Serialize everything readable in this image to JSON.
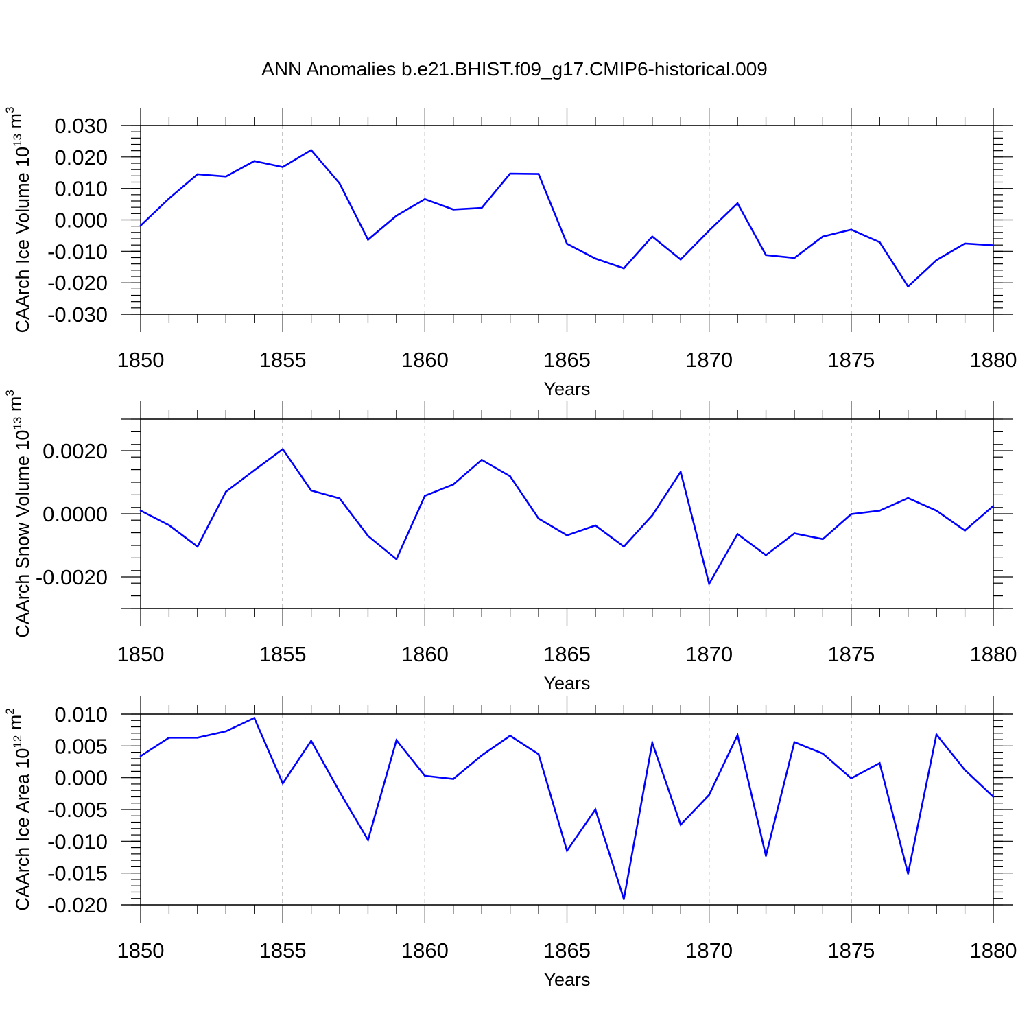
{
  "title": "ANN Anomalies b.e21.BHIST.f09_g17.CMIP6-historical.009",
  "colors": {
    "line": "#0000ff",
    "grid": "#555555",
    "axis": "#000000"
  },
  "chart_data": [
    {
      "type": "line",
      "name": "ice-volume",
      "xlabel": "Years",
      "ylabel": "CAArch Ice Volume 10",
      "ylabel_exp": "13",
      "ylabel_unit": " m",
      "ylabel_unit_exp": "3",
      "xlim": [
        1850,
        1880
      ],
      "ylim": [
        -0.03,
        0.03
      ],
      "xticks": [
        1850,
        1855,
        1860,
        1865,
        1870,
        1875,
        1880
      ],
      "xtick_labels": [
        "1850",
        "1855",
        "1860",
        "1865",
        "1870",
        "1875",
        "1880"
      ],
      "yticks": [
        0.03,
        0.02,
        0.01,
        0.0,
        -0.01,
        -0.02,
        -0.03
      ],
      "ytick_labels": [
        "0.030",
        "0.020",
        "0.010",
        "0.000",
        "-0.010",
        "-0.020",
        "-0.030"
      ],
      "ygrid_full": [
        -0.03,
        0.03
      ],
      "x": [
        1850,
        1851,
        1852,
        1853,
        1854,
        1855,
        1856,
        1857,
        1858,
        1859,
        1860,
        1861,
        1862,
        1863,
        1864,
        1865,
        1866,
        1867,
        1868,
        1869,
        1870,
        1871,
        1872,
        1873,
        1874,
        1875,
        1876,
        1877,
        1878,
        1879,
        1880
      ],
      "values": [
        -0.0018,
        0.0068,
        0.0145,
        0.0138,
        0.0187,
        0.0168,
        0.0222,
        0.0116,
        -0.0063,
        0.0013,
        0.0066,
        0.0033,
        0.0038,
        0.0147,
        0.0146,
        -0.0076,
        -0.0123,
        -0.0154,
        -0.0053,
        -0.0126,
        -0.0034,
        0.0053,
        -0.0112,
        -0.0121,
        -0.0053,
        -0.0031,
        -0.0071,
        -0.0212,
        -0.0128,
        -0.0075,
        -0.0081
      ]
    },
    {
      "type": "line",
      "name": "snow-volume",
      "xlabel": "Years",
      "ylabel": "CAArch Snow Volume 10",
      "ylabel_exp": "13",
      "ylabel_unit": " m",
      "ylabel_unit_exp": "3",
      "xlim": [
        1850,
        1880
      ],
      "ylim": [
        -0.003,
        0.003
      ],
      "xticks": [
        1850,
        1855,
        1860,
        1865,
        1870,
        1875,
        1880
      ],
      "xtick_labels": [
        "1850",
        "1855",
        "1860",
        "1865",
        "1870",
        "1875",
        "1880"
      ],
      "yticks": [
        0.002,
        0.0,
        -0.002
      ],
      "ytick_labels": [
        "0.0020",
        "0.0000",
        "-0.0020"
      ],
      "ygrid_full": [
        -0.003,
        0.003
      ],
      "x": [
        1850,
        1851,
        1852,
        1853,
        1854,
        1855,
        1856,
        1857,
        1858,
        1859,
        1860,
        1861,
        1862,
        1863,
        1864,
        1865,
        1866,
        1867,
        1868,
        1869,
        1870,
        1871,
        1872,
        1873,
        1874,
        1875,
        1876,
        1877,
        1878,
        1879,
        1880
      ],
      "values": [
        0.0001,
        -0.00036,
        -0.00104,
        0.0007,
        0.00138,
        0.00205,
        0.00074,
        0.00049,
        -0.0007,
        -0.00144,
        0.00057,
        0.00093,
        0.00171,
        0.00119,
        -0.00015,
        -0.00068,
        -0.00037,
        -0.00104,
        -5e-05,
        0.00133,
        -0.00222,
        -0.00064,
        -0.00131,
        -0.00062,
        -0.0008,
        -1e-05,
        0.0001,
        0.0005,
        0.0001,
        -0.00053,
        0.00025
      ]
    },
    {
      "type": "line",
      "name": "ice-area",
      "xlabel": "Years",
      "ylabel": "CAArch Ice Area 10",
      "ylabel_exp": "12",
      "ylabel_unit": " m",
      "ylabel_unit_exp": "2",
      "xlim": [
        1850,
        1880
      ],
      "ylim": [
        -0.02,
        0.01
      ],
      "xticks": [
        1850,
        1855,
        1860,
        1865,
        1870,
        1875,
        1880
      ],
      "xtick_labels": [
        "1850",
        "1855",
        "1860",
        "1865",
        "1870",
        "1875",
        "1880"
      ],
      "yticks": [
        0.01,
        0.005,
        0.0,
        -0.005,
        -0.01,
        -0.015,
        -0.02
      ],
      "ytick_labels": [
        "0.010",
        "0.005",
        "0.000",
        "-0.005",
        "-0.010",
        "-0.015",
        "-0.020"
      ],
      "ygrid_full": [
        -0.02,
        0.01
      ],
      "x": [
        1850,
        1851,
        1852,
        1853,
        1854,
        1855,
        1856,
        1857,
        1858,
        1859,
        1860,
        1861,
        1862,
        1863,
        1864,
        1865,
        1866,
        1867,
        1868,
        1869,
        1870,
        1871,
        1872,
        1873,
        1874,
        1875,
        1876,
        1877,
        1878,
        1879,
        1880
      ],
      "values": [
        0.0034,
        0.0063,
        0.0063,
        0.0073,
        0.0094,
        -0.0009,
        0.0058,
        -0.0022,
        -0.0098,
        0.0059,
        0.0003,
        -0.0002,
        0.0035,
        0.0066,
        0.0037,
        -0.0115,
        -0.005,
        -0.0191,
        0.0055,
        -0.0074,
        -0.0027,
        0.0067,
        -0.0123,
        0.0056,
        0.0038,
        -0.0001,
        0.0023,
        -0.0151,
        0.0068,
        0.0012,
        -0.003
      ]
    }
  ]
}
